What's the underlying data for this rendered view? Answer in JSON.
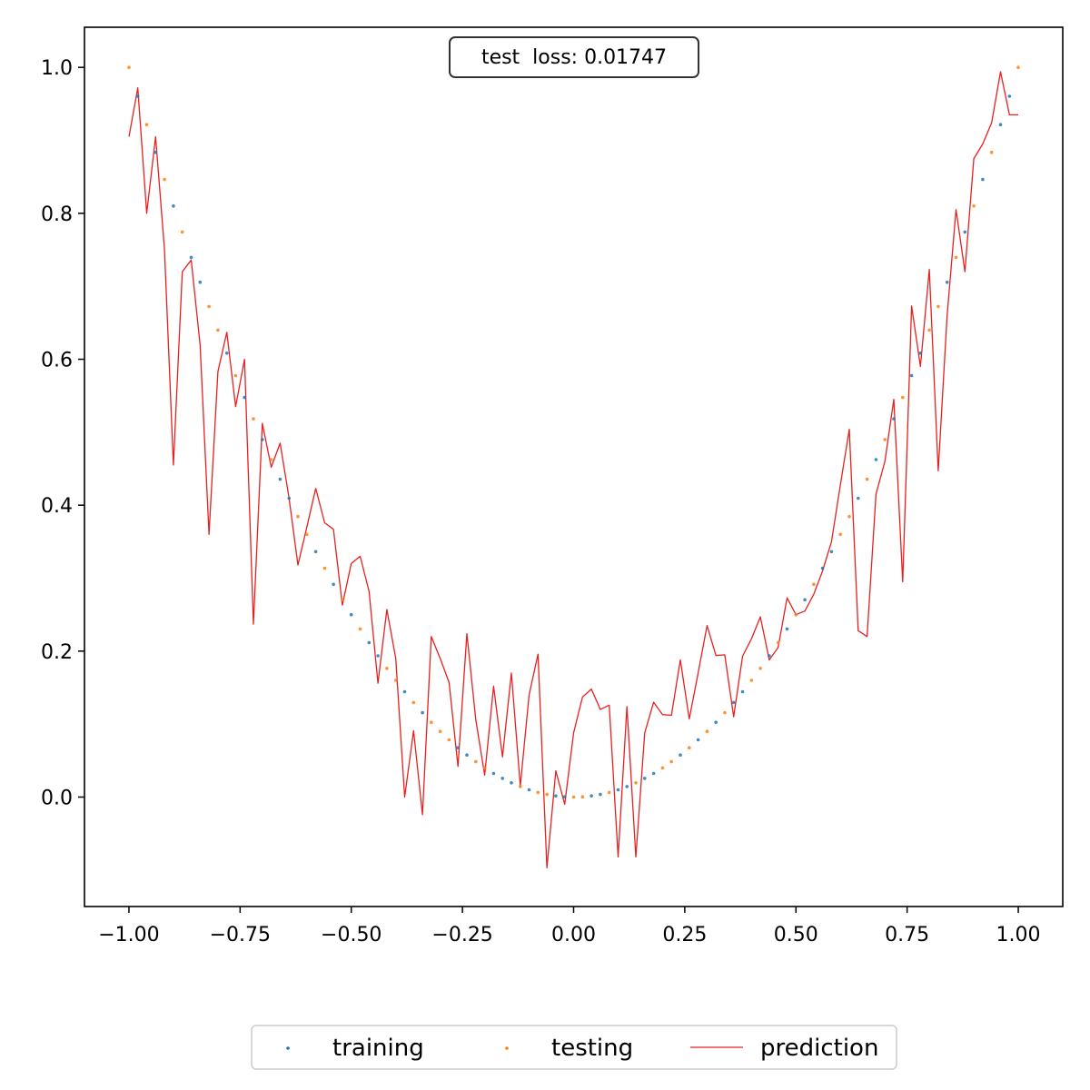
{
  "chart_data": {
    "type": "scatter",
    "title": "",
    "xlabel": "",
    "ylabel": "",
    "xlim": [
      -1.1,
      1.1
    ],
    "ylim": [
      -0.15,
      1.055
    ],
    "xticks": [
      -1.0,
      -0.75,
      -0.5,
      -0.25,
      0.0,
      0.25,
      0.5,
      0.75,
      1.0
    ],
    "xtick_labels": [
      "−1.00",
      "−0.75",
      "−0.50",
      "−0.25",
      "0.00",
      "0.25",
      "0.50",
      "0.75",
      "1.00"
    ],
    "yticks": [
      0.0,
      0.2,
      0.4,
      0.6,
      0.8,
      1.0
    ],
    "ytick_labels": [
      "0.0",
      "0.2",
      "0.4",
      "0.6",
      "0.8",
      "1.0"
    ],
    "annotation": "test  loss: 0.01747",
    "legend_position": "bottom-center outside",
    "colors": {
      "training": "#1f77b4",
      "testing": "#ff7f0e",
      "prediction": "#e82020"
    },
    "series": [
      {
        "name": "training",
        "kind": "scatter",
        "x": [
          -0.98,
          -0.94,
          -0.9,
          -0.86,
          -0.84,
          -0.78,
          -0.74,
          -0.7,
          -0.66,
          -0.64,
          -0.58,
          -0.54,
          -0.5,
          -0.46,
          -0.44,
          -0.38,
          -0.34,
          -0.26,
          -0.24,
          -0.18,
          -0.16,
          -0.14,
          -0.1,
          -0.04,
          -0.02,
          0.04,
          0.06,
          0.1,
          0.12,
          0.16,
          0.18,
          0.24,
          0.28,
          0.32,
          0.36,
          0.38,
          0.44,
          0.48,
          0.52,
          0.56,
          0.58,
          0.64,
          0.68,
          0.72,
          0.76,
          0.78,
          0.84,
          0.88,
          0.92,
          0.96,
          0.98
        ],
        "y": [
          0.9604,
          0.8836,
          0.81,
          0.7396,
          0.7056,
          0.6084,
          0.5476,
          0.49,
          0.4356,
          0.4096,
          0.3364,
          0.2916,
          0.25,
          0.2116,
          0.1936,
          0.1444,
          0.1156,
          0.0676,
          0.0576,
          0.0324,
          0.0256,
          0.0196,
          0.01,
          0.0016,
          0.0004,
          0.0016,
          0.0036,
          0.01,
          0.0144,
          0.0256,
          0.0324,
          0.0576,
          0.0784,
          0.1024,
          0.1296,
          0.1444,
          0.1936,
          0.2304,
          0.2704,
          0.3136,
          0.3364,
          0.4096,
          0.4624,
          0.5184,
          0.5776,
          0.6084,
          0.7056,
          0.7744,
          0.8464,
          0.9216,
          0.9604
        ]
      },
      {
        "name": "testing",
        "kind": "scatter",
        "x": [
          -1.0,
          -0.96,
          -0.92,
          -0.88,
          -0.82,
          -0.8,
          -0.76,
          -0.72,
          -0.68,
          -0.62,
          -0.6,
          -0.56,
          -0.52,
          -0.48,
          -0.42,
          -0.4,
          -0.36,
          -0.32,
          -0.3,
          -0.28,
          -0.22,
          -0.2,
          -0.12,
          -0.08,
          -0.06,
          0.0,
          0.02,
          0.08,
          0.14,
          0.2,
          0.22,
          0.26,
          0.3,
          0.34,
          0.4,
          0.42,
          0.46,
          0.5,
          0.54,
          0.6,
          0.62,
          0.66,
          0.7,
          0.74,
          0.8,
          0.82,
          0.86,
          0.9,
          0.94,
          1.0
        ],
        "y": [
          1.0,
          0.9216,
          0.8464,
          0.7744,
          0.6724,
          0.64,
          0.5776,
          0.5184,
          0.4624,
          0.3844,
          0.36,
          0.3136,
          0.2704,
          0.2304,
          0.1764,
          0.16,
          0.1296,
          0.1024,
          0.09,
          0.0784,
          0.0484,
          0.04,
          0.0144,
          0.0064,
          0.0036,
          0.0,
          0.0004,
          0.0064,
          0.0196,
          0.04,
          0.0484,
          0.0676,
          0.09,
          0.1156,
          0.16,
          0.1764,
          0.2116,
          0.25,
          0.2916,
          0.36,
          0.3844,
          0.4356,
          0.49,
          0.5476,
          0.64,
          0.6724,
          0.7396,
          0.81,
          0.8836,
          1.0
        ]
      },
      {
        "name": "prediction",
        "kind": "line",
        "x": [
          -1.0,
          -0.98,
          -0.96,
          -0.94,
          -0.92,
          -0.9,
          -0.88,
          -0.86,
          -0.84,
          -0.82,
          -0.8,
          -0.78,
          -0.76,
          -0.74,
          -0.72,
          -0.7,
          -0.68,
          -0.66,
          -0.64,
          -0.62,
          -0.6,
          -0.58,
          -0.56,
          -0.54,
          -0.52,
          -0.5,
          -0.48,
          -0.46,
          -0.44,
          -0.42,
          -0.4,
          -0.38,
          -0.36,
          -0.34,
          -0.32,
          -0.3,
          -0.28,
          -0.26,
          -0.24,
          -0.22,
          -0.2,
          -0.18,
          -0.16,
          -0.14,
          -0.12,
          -0.1,
          -0.08,
          -0.06,
          -0.04,
          -0.02,
          0.0,
          0.02,
          0.04,
          0.06,
          0.08,
          0.1,
          0.12,
          0.14,
          0.16,
          0.18,
          0.2,
          0.22,
          0.24,
          0.26,
          0.28,
          0.3,
          0.32,
          0.34,
          0.36,
          0.38,
          0.4,
          0.42,
          0.44,
          0.46,
          0.48,
          0.5,
          0.52,
          0.54,
          0.56,
          0.58,
          0.6,
          0.62,
          0.64,
          0.66,
          0.68,
          0.7,
          0.72,
          0.74,
          0.76,
          0.78,
          0.8,
          0.82,
          0.84,
          0.86,
          0.88,
          0.9,
          0.92,
          0.94,
          0.96,
          0.98,
          1.0
        ],
        "y": [
          0.905,
          0.972,
          0.8,
          0.905,
          0.75,
          0.455,
          0.72,
          0.736,
          0.62,
          0.36,
          0.583,
          0.637,
          0.535,
          0.6,
          0.237,
          0.512,
          0.452,
          0.485,
          0.41,
          0.318,
          0.37,
          0.423,
          0.376,
          0.367,
          0.263,
          0.32,
          0.33,
          0.282,
          0.156,
          0.257,
          0.19,
          0.0,
          0.091,
          -0.024,
          0.22,
          0.19,
          0.157,
          0.042,
          0.224,
          0.106,
          0.03,
          0.152,
          0.055,
          0.17,
          0.015,
          0.14,
          0.196,
          -0.097,
          0.036,
          -0.01,
          0.088,
          0.137,
          0.148,
          0.12,
          0.126,
          -0.082,
          0.124,
          -0.082,
          0.088,
          0.13,
          0.113,
          0.112,
          0.188,
          0.107,
          0.17,
          0.235,
          0.194,
          0.195,
          0.11,
          0.193,
          0.217,
          0.247,
          0.188,
          0.205,
          0.273,
          0.25,
          0.255,
          0.278,
          0.31,
          0.35,
          0.428,
          0.504,
          0.228,
          0.22,
          0.415,
          0.46,
          0.545,
          0.295,
          0.673,
          0.59,
          0.723,
          0.447,
          0.66,
          0.805,
          0.72,
          0.875,
          0.895,
          0.924,
          0.994,
          0.935,
          0.935
        ]
      }
    ]
  }
}
